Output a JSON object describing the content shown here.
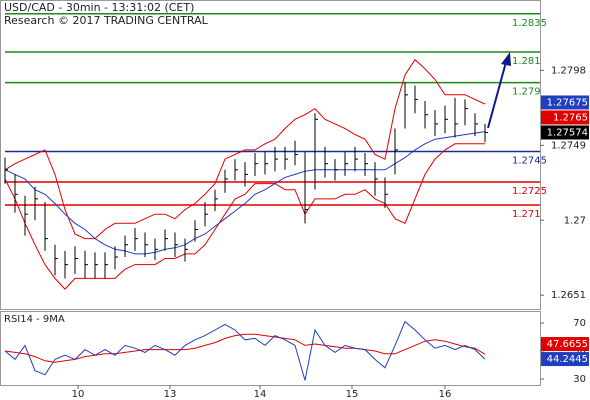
{
  "chart_data": [
    {
      "type": "ohlc",
      "title": "USD/CAD - 30min - 13:31:02 (CET)",
      "subtitle": "Research © 2017 TRADING CENTRAL",
      "color": "#000000",
      "xlim": [
        -0.5,
        53.5
      ],
      "ylim": [
        1.2642,
        1.2844
      ],
      "yticks": [
        1.2651,
        1.27,
        1.2749,
        1.2798
      ],
      "close": [
        1.2733,
        1.2717,
        1.2704,
        1.2714,
        1.2688,
        1.2675,
        1.2671,
        1.2675,
        1.2671,
        1.2671,
        1.2671,
        1.2676,
        1.2684,
        1.2688,
        1.2684,
        1.2681,
        1.2688,
        1.2684,
        1.2681,
        1.2694,
        1.2704,
        1.2714,
        1.2727,
        1.2733,
        1.273,
        1.2737,
        1.2737,
        1.274,
        1.274,
        1.2743,
        1.2707,
        1.2766,
        1.2737,
        1.2733,
        1.2737,
        1.274,
        1.2737,
        1.2727,
        1.2717,
        1.2746,
        1.2782,
        1.2779,
        1.2769,
        1.2763,
        1.2766,
        1.2763,
        1.2773,
        1.2763,
        1.27574
      ],
      "high": [
        1.2741,
        1.273,
        1.2716,
        1.2722,
        1.2712,
        1.2684,
        1.268,
        1.2683,
        1.268,
        1.2679,
        1.2679,
        1.2683,
        1.269,
        1.2695,
        1.2692,
        1.2688,
        1.2694,
        1.2692,
        1.2688,
        1.27,
        1.2712,
        1.272,
        1.2733,
        1.274,
        1.2738,
        1.2744,
        1.2745,
        1.2748,
        1.2748,
        1.2752,
        1.2745,
        1.277,
        1.2748,
        1.274,
        1.2745,
        1.2748,
        1.2744,
        1.2738,
        1.2728,
        1.276,
        1.279,
        1.2788,
        1.2778,
        1.2772,
        1.2775,
        1.278,
        1.2779,
        1.277,
        1.2763
      ],
      "low": [
        1.2724,
        1.2705,
        1.269,
        1.27,
        1.268,
        1.2664,
        1.2662,
        1.2665,
        1.2662,
        1.2662,
        1.2662,
        1.2668,
        1.2676,
        1.268,
        1.2676,
        1.2674,
        1.268,
        1.2676,
        1.2673,
        1.2686,
        1.2696,
        1.2706,
        1.2718,
        1.2726,
        1.2722,
        1.2729,
        1.273,
        1.2732,
        1.2733,
        1.2736,
        1.2698,
        1.272,
        1.2728,
        1.2726,
        1.2729,
        1.2732,
        1.2729,
        1.2716,
        1.2708,
        1.273,
        1.276,
        1.277,
        1.276,
        1.2755,
        1.2757,
        1.2754,
        1.2762,
        1.2755,
        1.2751
      ],
      "series": [
        {
          "color": "#e00000",
          "values": [
            1.2733,
            1.2737,
            1.274,
            1.2743,
            1.2746,
            1.273,
            1.2707,
            1.2691,
            1.2688,
            1.2688,
            1.2694,
            1.2698,
            1.2698,
            1.2698,
            1.2701,
            1.2704,
            1.2704,
            1.2701,
            1.2707,
            1.2711,
            1.2717,
            1.2724,
            1.274,
            1.2743,
            1.2746,
            1.2746,
            1.275,
            1.2753,
            1.276,
            1.2766,
            1.2769,
            1.2773,
            1.2766,
            1.2763,
            1.276,
            1.2756,
            1.2753,
            1.2743,
            1.274,
            1.2773,
            1.2795,
            1.2805,
            1.2799,
            1.2792,
            1.2782,
            1.2782,
            1.2782,
            1.2779,
            1.2776
          ]
        },
        {
          "color": "#e00000",
          "values": [
            1.2727,
            1.2714,
            1.2698,
            1.2684,
            1.2671,
            1.2662,
            1.2655,
            1.2662,
            1.2662,
            1.2662,
            1.2662,
            1.2662,
            1.2668,
            1.2671,
            1.2671,
            1.2671,
            1.2675,
            1.2675,
            1.2678,
            1.2678,
            1.2684,
            1.2694,
            1.2704,
            1.2714,
            1.2717,
            1.2724,
            1.2724,
            1.2724,
            1.272,
            1.272,
            1.2704,
            1.2714,
            1.2714,
            1.2714,
            1.2717,
            1.2717,
            1.272,
            1.2714,
            1.2711,
            1.2701,
            1.2698,
            1.2714,
            1.273,
            1.274,
            1.2746,
            1.275,
            1.275,
            1.275,
            1.275
          ]
        },
        {
          "color": "#1f3fbf",
          "values": [
            1.2733,
            1.273,
            1.2727,
            1.272,
            1.2717,
            1.2711,
            1.2704,
            1.2698,
            1.2694,
            1.2688,
            1.2684,
            1.2681,
            1.268,
            1.2678,
            1.2678,
            1.2679,
            1.2681,
            1.2682,
            1.2684,
            1.2688,
            1.2691,
            1.2696,
            1.2701,
            1.2706,
            1.2711,
            1.2717,
            1.272,
            1.2724,
            1.2728,
            1.273,
            1.2732,
            1.2733,
            1.2733,
            1.2733,
            1.2733,
            1.2733,
            1.2733,
            1.2733,
            1.2733,
            1.2737,
            1.2741,
            1.2746,
            1.275,
            1.2753,
            1.2754,
            1.2755,
            1.2756,
            1.2757,
            1.2758
          ]
        }
      ],
      "levels": [
        {
          "value": 1.2835,
          "color": "#1a8a1a"
        },
        {
          "value": 1.281,
          "color": "#1a8a1a"
        },
        {
          "value": 1.279,
          "color": "#1a8a1a"
        },
        {
          "value": 1.2745,
          "color": "#1a2aa0"
        },
        {
          "value": 1.2725,
          "color": "#e00000"
        },
        {
          "value": 1.271,
          "color": "#e00000"
        }
      ],
      "markers": [
        {
          "value": 1.27675,
          "color": "#1f3fbf"
        },
        {
          "value": 1.2765,
          "color": "#e00000"
        }
      ]
    },
    {
      "type": "line",
      "title": "RSI14 - 9MA",
      "xlim": [
        -0.5,
        53.5
      ],
      "ylim": [
        25.7,
        78.6
      ],
      "yticks": [
        30,
        50,
        70
      ],
      "xticks": [
        {
          "value": 7.3,
          "label": "10"
        },
        {
          "value": 16.5,
          "label": "13"
        },
        {
          "value": 25.5,
          "label": "14"
        },
        {
          "value": 34.7,
          "label": "15"
        },
        {
          "value": 44,
          "label": "16"
        }
      ],
      "series": [
        {
          "color": "#e00000",
          "values": [
            50,
            49,
            48,
            46,
            43,
            42,
            43,
            44,
            46,
            47,
            48,
            48,
            49,
            50,
            51,
            51,
            51,
            51,
            51,
            52,
            54,
            56,
            59,
            61,
            62,
            62,
            61,
            60,
            59,
            58,
            54,
            55,
            54,
            53,
            52,
            52,
            51,
            50,
            48,
            48,
            51,
            54,
            57,
            58,
            57,
            55,
            53,
            52,
            47.6655
          ]
        },
        {
          "color": "#1f3fbf",
          "values": [
            50,
            44,
            54,
            36,
            33,
            44,
            47,
            44,
            51,
            47,
            51,
            47,
            54,
            52,
            49,
            54,
            51,
            47,
            54,
            58,
            61,
            65,
            69,
            65,
            58,
            59,
            54,
            61,
            58,
            54,
            29,
            65,
            54,
            49,
            54,
            52,
            51,
            44,
            38,
            54,
            71,
            65,
            58,
            52,
            54,
            51,
            54,
            51,
            44.2445
          ]
        }
      ]
    }
  ]
}
